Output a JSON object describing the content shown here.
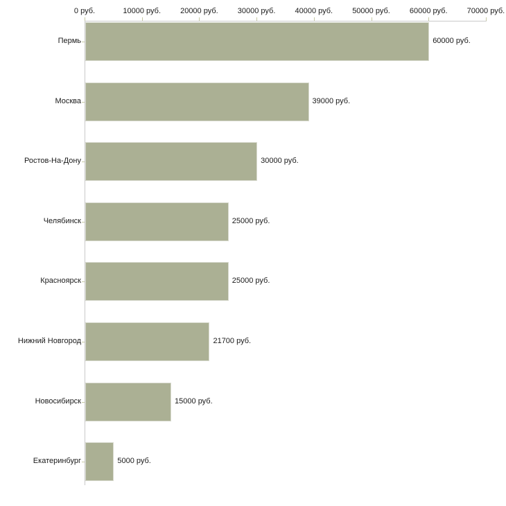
{
  "chart_data": {
    "type": "bar",
    "orientation": "horizontal",
    "title": "",
    "xlabel": "",
    "ylabel": "",
    "categories": [
      "Пермь",
      "Москва",
      "Ростов-На-Дону",
      "Челябинск",
      "Красноярск",
      "Нижний Новгород",
      "Новосибирск",
      "Екатеринбург"
    ],
    "values": [
      60000,
      39000,
      30000,
      25000,
      25000,
      21700,
      15000,
      5000
    ],
    "value_labels": [
      "60000 руб.",
      "39000 руб.",
      "30000 руб.",
      "25000 руб.",
      "25000 руб.",
      "21700 руб.",
      "15000 руб.",
      "5000 руб."
    ],
    "x_axis": {
      "position": "top",
      "min": 0,
      "max": 70000,
      "tick_values": [
        0,
        10000,
        20000,
        30000,
        40000,
        50000,
        60000,
        70000
      ],
      "tick_labels": [
        "0 руб.",
        "10000 руб.",
        "20000 руб.",
        "30000 руб.",
        "40000 руб.",
        "50000 руб.",
        "60000 руб.",
        "70000 руб."
      ]
    },
    "grid": false,
    "legend": false,
    "colors": {
      "bar_fill": "#abb094",
      "bar_border": "#d9dbd0",
      "axis_line": "#c9c9c9",
      "tick_mark": "#c6c9a4",
      "text": "#1a1a1a",
      "background": "#ffffff"
    }
  }
}
